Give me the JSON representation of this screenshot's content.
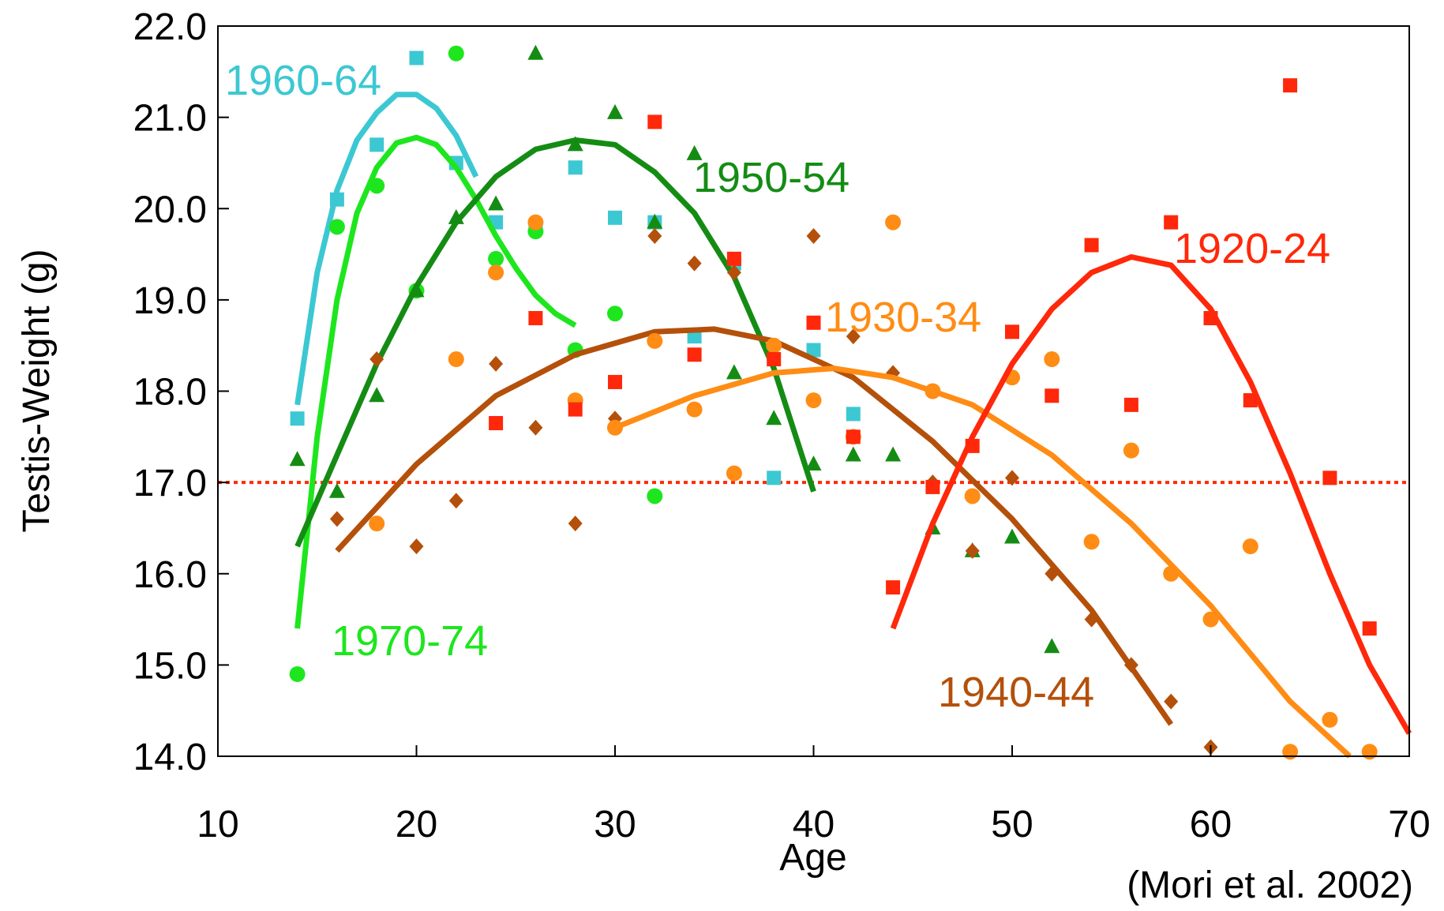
{
  "chart_data": {
    "type": "scatter",
    "title": "",
    "xlabel": "Age",
    "ylabel": "Testis-Weight (g)",
    "source_note": "(Mori et al. 2002)",
    "xlim": [
      10,
      70
    ],
    "ylim": [
      14.0,
      22.0
    ],
    "x_ticks": [
      "10",
      "20",
      "30",
      "40",
      "50",
      "60",
      "70"
    ],
    "y_ticks": [
      "14.0",
      "15.0",
      "16.0",
      "17.0",
      "18.0",
      "19.0",
      "20.0",
      "21.0",
      "22.0"
    ],
    "grid": false,
    "reference_line": {
      "y": 17.0,
      "style": "dotted",
      "color": "#ff2a00"
    },
    "series": [
      {
        "name": "1960-64",
        "color": "#3cc8d2",
        "marker": "square",
        "points": [
          [
            14,
            17.7
          ],
          [
            16,
            20.1
          ],
          [
            18,
            20.7
          ],
          [
            20,
            21.65
          ],
          [
            22,
            20.5
          ],
          [
            24,
            19.85
          ],
          [
            26,
            19.8
          ],
          [
            28,
            20.45
          ],
          [
            30,
            19.9
          ],
          [
            32,
            19.85
          ],
          [
            34,
            18.6
          ],
          [
            36,
            19.4
          ],
          [
            38,
            17.05
          ],
          [
            40,
            18.45
          ],
          [
            42,
            17.75
          ]
        ],
        "curve": [
          [
            14,
            17.85
          ],
          [
            15,
            19.3
          ],
          [
            16,
            20.2
          ],
          [
            17,
            20.75
          ],
          [
            18,
            21.05
          ],
          [
            19,
            21.25
          ],
          [
            20,
            21.25
          ],
          [
            21,
            21.1
          ],
          [
            22,
            20.8
          ],
          [
            23,
            20.35
          ]
        ]
      },
      {
        "name": "1970-74",
        "color": "#1ee61e",
        "marker": "circle",
        "points": [
          [
            14,
            14.9
          ],
          [
            16,
            19.8
          ],
          [
            18,
            20.25
          ],
          [
            20,
            19.1
          ],
          [
            22,
            21.7
          ],
          [
            24,
            19.45
          ],
          [
            26,
            19.75
          ],
          [
            28,
            18.45
          ],
          [
            30,
            18.85
          ],
          [
            32,
            16.85
          ]
        ],
        "curve": [
          [
            14,
            15.4
          ],
          [
            15,
            17.5
          ],
          [
            16,
            19.0
          ],
          [
            17,
            19.95
          ],
          [
            18,
            20.45
          ],
          [
            19,
            20.72
          ],
          [
            20,
            20.78
          ],
          [
            21,
            20.7
          ],
          [
            22,
            20.45
          ],
          [
            23,
            20.1
          ],
          [
            24,
            19.7
          ],
          [
            25,
            19.35
          ],
          [
            26,
            19.05
          ],
          [
            27,
            18.85
          ],
          [
            28,
            18.72
          ]
        ]
      },
      {
        "name": "1950-54",
        "color": "#148c14",
        "marker": "triangle",
        "points": [
          [
            14,
            17.25
          ],
          [
            16,
            16.9
          ],
          [
            18,
            17.95
          ],
          [
            20,
            19.1
          ],
          [
            22,
            19.9
          ],
          [
            24,
            20.05
          ],
          [
            26,
            21.7
          ],
          [
            28,
            20.7
          ],
          [
            30,
            21.05
          ],
          [
            32,
            19.85
          ],
          [
            34,
            20.6
          ],
          [
            36,
            18.2
          ],
          [
            38,
            17.7
          ],
          [
            40,
            17.2
          ],
          [
            42,
            17.3
          ],
          [
            44,
            17.3
          ],
          [
            46,
            16.5
          ],
          [
            48,
            16.25
          ],
          [
            50,
            16.4
          ],
          [
            52,
            15.2
          ]
        ],
        "curve": [
          [
            14,
            16.3
          ],
          [
            16,
            17.3
          ],
          [
            18,
            18.3
          ],
          [
            20,
            19.15
          ],
          [
            22,
            19.85
          ],
          [
            24,
            20.35
          ],
          [
            26,
            20.65
          ],
          [
            28,
            20.75
          ],
          [
            30,
            20.7
          ],
          [
            32,
            20.4
          ],
          [
            34,
            19.95
          ],
          [
            36,
            19.25
          ],
          [
            38,
            18.25
          ],
          [
            40,
            16.9
          ]
        ]
      },
      {
        "name": "1940-44",
        "color": "#b4500a",
        "marker": "diamond",
        "points": [
          [
            16,
            16.6
          ],
          [
            18,
            18.35
          ],
          [
            20,
            16.3
          ],
          [
            22,
            16.8
          ],
          [
            24,
            18.3
          ],
          [
            26,
            17.6
          ],
          [
            28,
            16.55
          ],
          [
            30,
            17.7
          ],
          [
            32,
            19.7
          ],
          [
            34,
            19.4
          ],
          [
            36,
            19.3
          ],
          [
            38,
            18.5
          ],
          [
            40,
            19.7
          ],
          [
            42,
            18.6
          ],
          [
            44,
            18.2
          ],
          [
            46,
            17.0
          ],
          [
            48,
            16.25
          ],
          [
            50,
            17.05
          ],
          [
            52,
            16.0
          ],
          [
            54,
            15.5
          ],
          [
            56,
            15.0
          ],
          [
            58,
            14.6
          ],
          [
            60,
            14.1
          ]
        ],
        "curve": [
          [
            16,
            16.25
          ],
          [
            20,
            17.2
          ],
          [
            24,
            17.95
          ],
          [
            28,
            18.4
          ],
          [
            32,
            18.65
          ],
          [
            35,
            18.68
          ],
          [
            38,
            18.55
          ],
          [
            42,
            18.15
          ],
          [
            46,
            17.45
          ],
          [
            50,
            16.6
          ],
          [
            54,
            15.6
          ],
          [
            58,
            14.35
          ]
        ]
      },
      {
        "name": "1930-34",
        "color": "#ff8c14",
        "marker": "circle",
        "points": [
          [
            18,
            16.55
          ],
          [
            22,
            18.35
          ],
          [
            24,
            19.3
          ],
          [
            26,
            19.85
          ],
          [
            28,
            17.9
          ],
          [
            30,
            17.6
          ],
          [
            32,
            18.55
          ],
          [
            34,
            17.8
          ],
          [
            36,
            17.1
          ],
          [
            38,
            18.5
          ],
          [
            40,
            17.9
          ],
          [
            42,
            17.5
          ],
          [
            44,
            19.85
          ],
          [
            46,
            18.0
          ],
          [
            48,
            16.85
          ],
          [
            50,
            18.15
          ],
          [
            52,
            18.35
          ],
          [
            54,
            16.35
          ],
          [
            56,
            17.35
          ],
          [
            58,
            16.0
          ],
          [
            60,
            15.5
          ],
          [
            62,
            16.3
          ],
          [
            64,
            14.05
          ],
          [
            66,
            14.4
          ],
          [
            68,
            14.05
          ]
        ],
        "curve": [
          [
            30,
            17.6
          ],
          [
            34,
            17.95
          ],
          [
            38,
            18.2
          ],
          [
            41,
            18.25
          ],
          [
            44,
            18.15
          ],
          [
            48,
            17.85
          ],
          [
            52,
            17.3
          ],
          [
            56,
            16.55
          ],
          [
            60,
            15.65
          ],
          [
            64,
            14.6
          ],
          [
            67,
            13.95
          ]
        ]
      },
      {
        "name": "1920-24",
        "color": "#ff280a",
        "marker": "square",
        "points": [
          [
            24,
            17.65
          ],
          [
            26,
            18.8
          ],
          [
            28,
            17.8
          ],
          [
            30,
            18.1
          ],
          [
            32,
            20.95
          ],
          [
            34,
            18.4
          ],
          [
            36,
            19.45
          ],
          [
            38,
            18.35
          ],
          [
            40,
            18.75
          ],
          [
            42,
            17.5
          ],
          [
            44,
            15.85
          ],
          [
            46,
            16.95
          ],
          [
            48,
            17.4
          ],
          [
            50,
            18.65
          ],
          [
            52,
            17.95
          ],
          [
            54,
            19.6
          ],
          [
            56,
            17.85
          ],
          [
            58,
            19.85
          ],
          [
            60,
            18.8
          ],
          [
            62,
            17.9
          ],
          [
            64,
            21.35
          ],
          [
            66,
            17.05
          ],
          [
            68,
            15.4
          ]
        ],
        "curve": [
          [
            44,
            15.4
          ],
          [
            46,
            16.55
          ],
          [
            48,
            17.5
          ],
          [
            50,
            18.3
          ],
          [
            52,
            18.9
          ],
          [
            54,
            19.3
          ],
          [
            56,
            19.47
          ],
          [
            58,
            19.38
          ],
          [
            60,
            18.9
          ],
          [
            62,
            18.1
          ],
          [
            64,
            17.1
          ],
          [
            66,
            16.0
          ],
          [
            68,
            15.0
          ],
          [
            70,
            14.25
          ]
        ]
      }
    ],
    "series_label_text": [
      "1960-64",
      "1950-54",
      "1920-24",
      "1930-34",
      "1970-74",
      "1940-44"
    ]
  }
}
